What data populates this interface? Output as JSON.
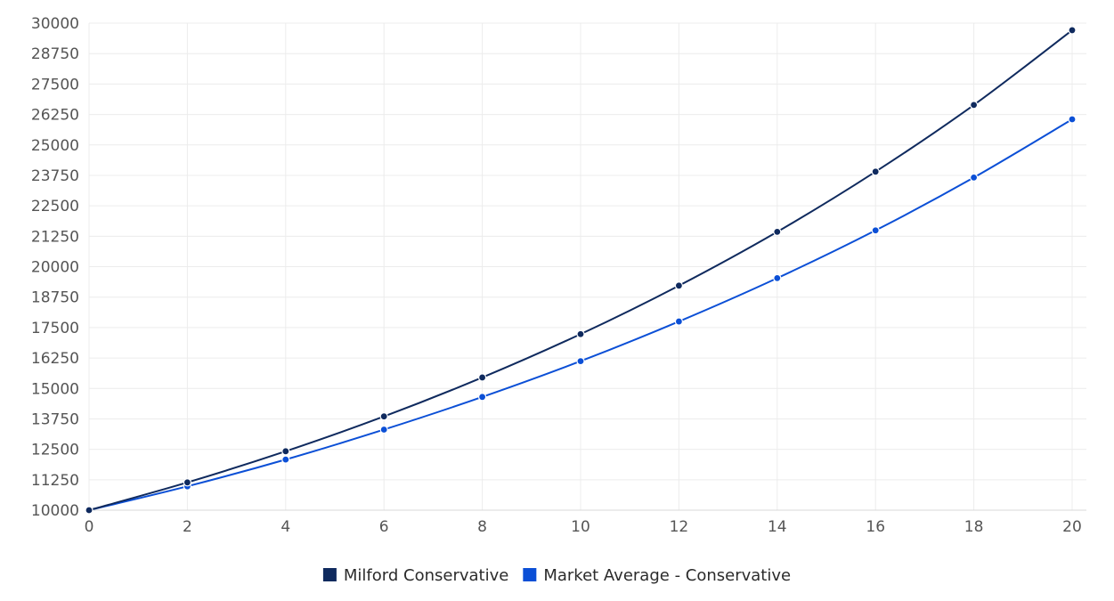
{
  "chart_data": {
    "type": "line",
    "title": "",
    "xlabel": "",
    "ylabel": "",
    "x": [
      0,
      2,
      4,
      6,
      8,
      10,
      12,
      14,
      16,
      18,
      20
    ],
    "xlim": [
      0,
      20
    ],
    "ylim": [
      10000,
      30000
    ],
    "x_ticks": [
      "0",
      "2",
      "4",
      "6",
      "8",
      "10",
      "12",
      "14",
      "16",
      "18",
      "20"
    ],
    "y_ticks": [
      "10000",
      "11250",
      "12500",
      "13750",
      "15000",
      "16250",
      "17500",
      "18750",
      "20000",
      "21250",
      "22500",
      "23750",
      "25000",
      "26250",
      "27500",
      "28750",
      "30000"
    ],
    "grid": true,
    "legend_position": "bottom-center",
    "series": [
      {
        "name": "Milford Conservative",
        "color": "#0f2a5e",
        "values": [
          10000,
          11140,
          12420,
          13850,
          15450,
          17230,
          19220,
          21430,
          23900,
          26640,
          29710
        ]
      },
      {
        "name": "Market Average - Conservative",
        "color": "#0b4fd6",
        "values": [
          10000,
          10980,
          12080,
          13310,
          14650,
          16120,
          17750,
          19530,
          21490,
          23660,
          26050
        ]
      }
    ]
  }
}
